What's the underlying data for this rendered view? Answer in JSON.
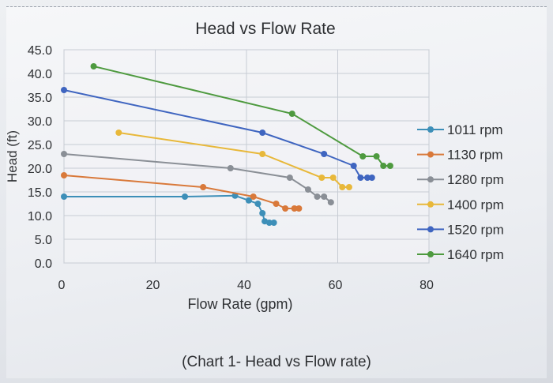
{
  "caption": "(Chart 1- Head vs Flow rate)",
  "chart_data": {
    "type": "line",
    "title": "Head vs Flow Rate",
    "xlabel": "Flow Rate (gpm)",
    "ylabel": "Head (ft)",
    "xlim": [
      0,
      80
    ],
    "ylim": [
      0,
      45
    ],
    "x_ticks": [
      "0",
      "20",
      "40",
      "60",
      "80"
    ],
    "y_ticks": [
      "0.0",
      "5.0",
      "10.0",
      "15.0",
      "20.0",
      "25.0",
      "30.0",
      "35.0",
      "40.0",
      "45.0"
    ],
    "grid": true,
    "legend_position": "right",
    "series": [
      {
        "name": "1011 rpm",
        "color": "#3d8fb8",
        "points": [
          [
            0,
            14.0
          ],
          [
            26.5,
            14.0
          ],
          [
            37.5,
            14.2
          ],
          [
            40.5,
            13.2
          ],
          [
            42.5,
            12.5
          ],
          [
            43.5,
            10.5
          ],
          [
            44.0,
            8.8
          ],
          [
            45.0,
            8.5
          ],
          [
            46.0,
            8.5
          ]
        ]
      },
      {
        "name": "1130 rpm",
        "color": "#d9793a",
        "points": [
          [
            0,
            18.5
          ],
          [
            30.5,
            16.0
          ],
          [
            41.5,
            14.0
          ],
          [
            46.5,
            12.5
          ],
          [
            48.5,
            11.5
          ],
          [
            50.5,
            11.5
          ],
          [
            51.5,
            11.5
          ]
        ]
      },
      {
        "name": "1280 rpm",
        "color": "#8a8f96",
        "points": [
          [
            0,
            23.0
          ],
          [
            36.5,
            20.0
          ],
          [
            49.5,
            18.0
          ],
          [
            53.5,
            15.5
          ],
          [
            55.5,
            14.0
          ],
          [
            57.0,
            14.0
          ],
          [
            58.5,
            12.8
          ]
        ]
      },
      {
        "name": "1400 rpm",
        "color": "#e8b83a",
        "points": [
          [
            12.0,
            27.5
          ],
          [
            43.5,
            23.0
          ],
          [
            56.5,
            18.0
          ],
          [
            59.0,
            18.0
          ],
          [
            61.0,
            16.0
          ],
          [
            62.5,
            16.0
          ]
        ]
      },
      {
        "name": "1520 rpm",
        "color": "#3f65c0",
        "points": [
          [
            0,
            36.5
          ],
          [
            43.5,
            27.5
          ],
          [
            57.0,
            23.0
          ],
          [
            63.5,
            20.5
          ],
          [
            65.0,
            18.0
          ],
          [
            66.5,
            18.0
          ],
          [
            67.5,
            18.0
          ]
        ]
      },
      {
        "name": "1640 rpm",
        "color": "#4e9a3f",
        "points": [
          [
            6.5,
            41.5
          ],
          [
            50.0,
            31.5
          ],
          [
            65.5,
            22.5
          ],
          [
            68.5,
            22.5
          ],
          [
            70.0,
            20.5
          ],
          [
            71.5,
            20.5
          ]
        ]
      }
    ]
  }
}
